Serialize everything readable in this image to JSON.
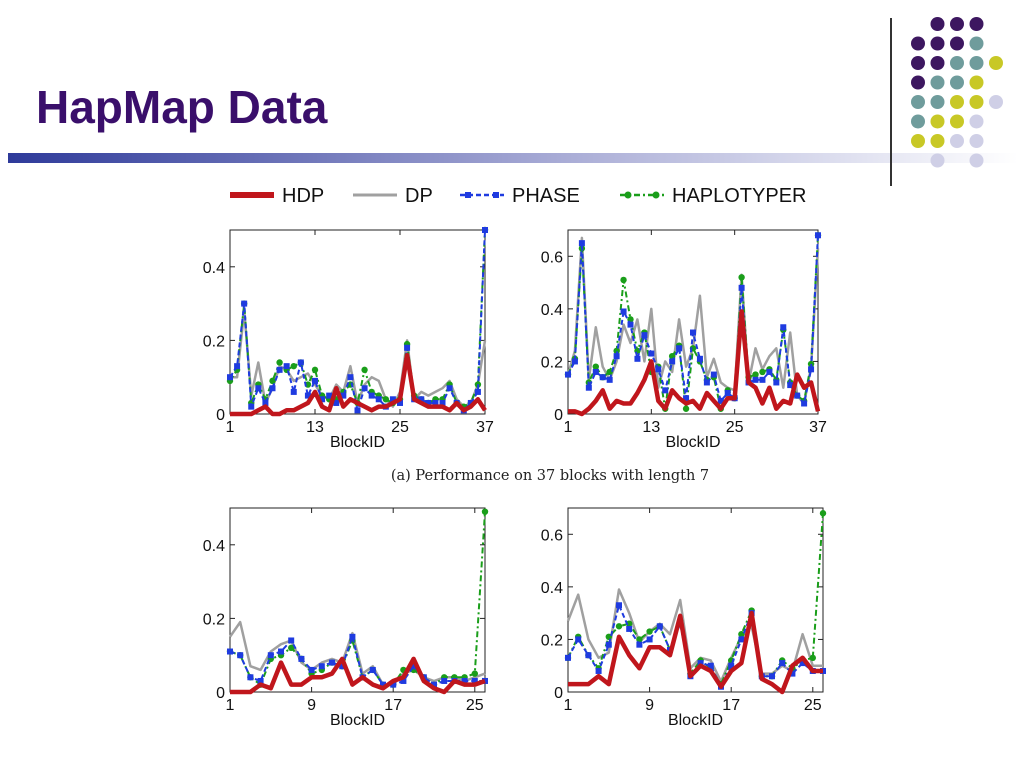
{
  "slide": {
    "title": "HapMap Data",
    "colors": {
      "title": "#3a0f6b",
      "purple": "#3d1760",
      "teal": "#6f9c9c",
      "olive": "#c8c826",
      "lavender": "#cfcfe6"
    }
  },
  "figure": {
    "caption": "(a) Performance on 37 blocks with length 7"
  },
  "legend": [
    {
      "name": "HDP",
      "color": "#c0161c",
      "style": "solid-thick"
    },
    {
      "name": "DP",
      "color": "#a0a0a0",
      "style": "solid"
    },
    {
      "name": "PHASE",
      "color": "#1f3be0",
      "style": "dashed-square"
    },
    {
      "name": "HAPLOTYPER",
      "color": "#1a9e1a",
      "style": "dashdot-circle"
    }
  ],
  "chart_data": [
    {
      "type": "line",
      "xlabel": "BlockID",
      "xlim": [
        1,
        37
      ],
      "xticks": [
        1,
        13,
        25,
        37
      ],
      "ylim": [
        0,
        0.5
      ],
      "yticks": [
        0,
        0.2,
        0.4
      ],
      "ytick_labels": [
        "0",
        "0.2",
        "0.4"
      ],
      "x": [
        1,
        2,
        3,
        4,
        5,
        6,
        7,
        8,
        9,
        10,
        11,
        12,
        13,
        14,
        15,
        16,
        17,
        18,
        19,
        20,
        21,
        22,
        23,
        24,
        25,
        26,
        27,
        28,
        29,
        30,
        31,
        32,
        33,
        34,
        35,
        36,
        37
      ],
      "series": [
        {
          "name": "HDP",
          "values": [
            0.0,
            0.0,
            0.0,
            0.0,
            0.01,
            0.02,
            0.0,
            0.0,
            0.01,
            0.01,
            0.02,
            0.03,
            0.06,
            0.02,
            0.01,
            0.07,
            0.02,
            0.04,
            0.03,
            0.02,
            0.01,
            0.02,
            0.02,
            0.03,
            0.04,
            0.16,
            0.04,
            0.03,
            0.02,
            0.02,
            0.02,
            0.01,
            0.03,
            0.01,
            0.02,
            0.04,
            0.01
          ]
        },
        {
          "name": "DP",
          "values": [
            0.1,
            0.1,
            0.28,
            0.05,
            0.14,
            0.03,
            0.07,
            0.13,
            0.12,
            0.09,
            0.1,
            0.11,
            0.08,
            0.05,
            0.04,
            0.08,
            0.06,
            0.13,
            0.03,
            0.08,
            0.1,
            0.09,
            0.04,
            0.02,
            0.06,
            0.2,
            0.04,
            0.06,
            0.05,
            0.06,
            0.07,
            0.09,
            0.04,
            0.02,
            0.03,
            0.08,
            0.2
          ]
        },
        {
          "name": "PHASE",
          "values": [
            0.1,
            0.13,
            0.3,
            0.02,
            0.07,
            0.03,
            0.07,
            0.12,
            0.13,
            0.06,
            0.14,
            0.05,
            0.09,
            0.04,
            0.05,
            0.03,
            0.05,
            0.1,
            0.01,
            0.07,
            0.05,
            0.04,
            0.02,
            0.04,
            0.03,
            0.18,
            0.04,
            0.04,
            0.03,
            0.03,
            0.03,
            0.07,
            0.03,
            0.01,
            0.03,
            0.06,
            0.5
          ]
        },
        {
          "name": "HAPLOTYPER",
          "values": [
            0.09,
            0.12,
            0.3,
            0.03,
            0.08,
            0.04,
            0.09,
            0.14,
            0.12,
            0.13,
            0.14,
            0.08,
            0.12,
            0.05,
            0.04,
            0.04,
            0.06,
            0.08,
            0.03,
            0.12,
            0.06,
            0.05,
            0.04,
            0.03,
            0.04,
            0.19,
            0.05,
            0.04,
            0.03,
            0.04,
            0.04,
            0.08,
            0.03,
            0.02,
            0.03,
            0.08,
            0.5
          ]
        }
      ]
    },
    {
      "type": "line",
      "xlabel": "BlockID",
      "xlim": [
        1,
        37
      ],
      "xticks": [
        1,
        13,
        25,
        37
      ],
      "ylim": [
        0,
        0.7
      ],
      "yticks": [
        0,
        0.2,
        0.4,
        0.6
      ],
      "ytick_labels": [
        "0",
        "0.2",
        "0.4",
        "0.6"
      ],
      "x": [
        1,
        2,
        3,
        4,
        5,
        6,
        7,
        8,
        9,
        10,
        11,
        12,
        13,
        14,
        15,
        16,
        17,
        18,
        19,
        20,
        21,
        22,
        23,
        24,
        25,
        26,
        27,
        28,
        29,
        30,
        31,
        32,
        33,
        34,
        35,
        36,
        37
      ],
      "series": [
        {
          "name": "HDP",
          "values": [
            0.01,
            0.01,
            0.0,
            0.02,
            0.05,
            0.09,
            0.02,
            0.05,
            0.04,
            0.04,
            0.08,
            0.13,
            0.2,
            0.05,
            0.02,
            0.09,
            0.06,
            0.04,
            0.05,
            0.02,
            0.08,
            0.05,
            0.02,
            0.06,
            0.06,
            0.39,
            0.12,
            0.1,
            0.04,
            0.1,
            0.02,
            0.05,
            0.04,
            0.15,
            0.1,
            0.12,
            0.01
          ]
        },
        {
          "name": "DP",
          "values": [
            0.15,
            0.24,
            0.67,
            0.13,
            0.33,
            0.18,
            0.13,
            0.2,
            0.34,
            0.27,
            0.36,
            0.2,
            0.4,
            0.1,
            0.2,
            0.16,
            0.36,
            0.18,
            0.25,
            0.45,
            0.14,
            0.21,
            0.12,
            0.1,
            0.09,
            0.53,
            0.12,
            0.25,
            0.17,
            0.22,
            0.25,
            0.1,
            0.31,
            0.07,
            0.04,
            0.18,
            0.63
          ]
        },
        {
          "name": "PHASE",
          "values": [
            0.15,
            0.2,
            0.65,
            0.1,
            0.16,
            0.14,
            0.13,
            0.22,
            0.39,
            0.34,
            0.21,
            0.3,
            0.23,
            0.17,
            0.09,
            0.2,
            0.25,
            0.06,
            0.31,
            0.21,
            0.12,
            0.15,
            0.05,
            0.08,
            0.06,
            0.48,
            0.12,
            0.13,
            0.13,
            0.16,
            0.12,
            0.33,
            0.11,
            0.07,
            0.04,
            0.17,
            0.68
          ]
        },
        {
          "name": "HAPLOTYPER",
          "values": [
            0.15,
            0.21,
            0.63,
            0.12,
            0.18,
            0.14,
            0.16,
            0.24,
            0.51,
            0.36,
            0.24,
            0.31,
            0.16,
            0.18,
            0.02,
            0.22,
            0.26,
            0.02,
            0.25,
            0.2,
            0.13,
            0.14,
            0.02,
            0.09,
            0.06,
            0.52,
            0.14,
            0.15,
            0.16,
            0.17,
            0.13,
            0.32,
            0.12,
            0.07,
            0.05,
            0.19,
            0.68
          ]
        }
      ]
    },
    {
      "type": "line",
      "xlabel": "BlockID",
      "xlim": [
        1,
        26
      ],
      "xticks": [
        1,
        9,
        17,
        25
      ],
      "ylim": [
        0,
        0.5
      ],
      "yticks": [
        0,
        0.2,
        0.4
      ],
      "ytick_labels": [
        "0",
        "0.2",
        "0.4"
      ],
      "x": [
        1,
        2,
        3,
        4,
        5,
        6,
        7,
        8,
        9,
        10,
        11,
        12,
        13,
        14,
        15,
        16,
        17,
        18,
        19,
        20,
        21,
        22,
        23,
        24,
        25,
        26
      ],
      "series": [
        {
          "name": "HDP",
          "values": [
            0.0,
            0.0,
            0.0,
            0.02,
            0.01,
            0.08,
            0.02,
            0.02,
            0.04,
            0.04,
            0.05,
            0.09,
            0.02,
            0.04,
            0.02,
            0.01,
            0.03,
            0.04,
            0.09,
            0.03,
            0.01,
            0.0,
            0.03,
            0.02,
            0.02,
            0.03
          ]
        },
        {
          "name": "DP",
          "values": [
            0.15,
            0.19,
            0.07,
            0.06,
            0.11,
            0.13,
            0.14,
            0.08,
            0.06,
            0.08,
            0.09,
            0.08,
            0.16,
            0.05,
            0.07,
            0.02,
            0.02,
            0.05,
            0.06,
            0.04,
            0.03,
            0.04,
            0.04,
            0.03,
            0.04,
            0.05
          ]
        },
        {
          "name": "PHASE",
          "values": [
            0.11,
            0.1,
            0.04,
            0.03,
            0.1,
            0.11,
            0.14,
            0.09,
            0.06,
            0.07,
            0.08,
            0.07,
            0.15,
            0.04,
            0.06,
            0.02,
            0.02,
            0.03,
            0.07,
            0.04,
            0.02,
            0.03,
            0.03,
            0.03,
            0.03,
            0.03
          ]
        },
        {
          "name": "HAPLOTYPER",
          "values": [
            0.11,
            0.1,
            0.04,
            0.02,
            0.09,
            0.1,
            0.12,
            0.09,
            0.05,
            0.06,
            0.08,
            0.07,
            0.14,
            0.04,
            0.06,
            0.02,
            0.02,
            0.06,
            0.06,
            0.04,
            0.02,
            0.04,
            0.04,
            0.04,
            0.05,
            0.49
          ]
        }
      ]
    },
    {
      "type": "line",
      "xlabel": "BlockID",
      "xlim": [
        1,
        26
      ],
      "xticks": [
        1,
        9,
        17,
        25
      ],
      "ylim": [
        0,
        0.7
      ],
      "yticks": [
        0,
        0.2,
        0.4,
        0.6
      ],
      "ytick_labels": [
        "0",
        "0.2",
        "0.4",
        "0.6"
      ],
      "x": [
        1,
        2,
        3,
        4,
        5,
        6,
        7,
        8,
        9,
        10,
        11,
        12,
        13,
        14,
        15,
        16,
        17,
        18,
        19,
        20,
        21,
        22,
        23,
        24,
        25,
        26
      ],
      "series": [
        {
          "name": "HDP",
          "values": [
            0.03,
            0.03,
            0.03,
            0.06,
            0.03,
            0.21,
            0.14,
            0.09,
            0.17,
            0.17,
            0.14,
            0.29,
            0.06,
            0.1,
            0.08,
            0.02,
            0.08,
            0.11,
            0.3,
            0.05,
            0.03,
            0.0,
            0.1,
            0.13,
            0.08,
            0.08
          ]
        },
        {
          "name": "DP",
          "values": [
            0.27,
            0.37,
            0.2,
            0.13,
            0.15,
            0.39,
            0.3,
            0.19,
            0.23,
            0.26,
            0.22,
            0.35,
            0.09,
            0.13,
            0.12,
            0.04,
            0.13,
            0.21,
            0.25,
            0.07,
            0.07,
            0.1,
            0.08,
            0.22,
            0.1,
            0.1
          ]
        },
        {
          "name": "PHASE",
          "values": [
            0.13,
            0.2,
            0.14,
            0.08,
            0.18,
            0.33,
            0.24,
            0.18,
            0.2,
            0.25,
            0.16,
            0.26,
            0.06,
            0.11,
            0.1,
            0.02,
            0.1,
            0.2,
            0.3,
            0.06,
            0.06,
            0.11,
            0.07,
            0.11,
            0.08,
            0.08
          ]
        },
        {
          "name": "HAPLOTYPER",
          "values": [
            0.13,
            0.21,
            0.14,
            0.09,
            0.21,
            0.25,
            0.26,
            0.2,
            0.23,
            0.25,
            0.16,
            0.27,
            0.07,
            0.12,
            0.09,
            0.03,
            0.12,
            0.22,
            0.31,
            0.06,
            0.06,
            0.12,
            0.09,
            0.12,
            0.13,
            0.68
          ]
        }
      ]
    }
  ]
}
